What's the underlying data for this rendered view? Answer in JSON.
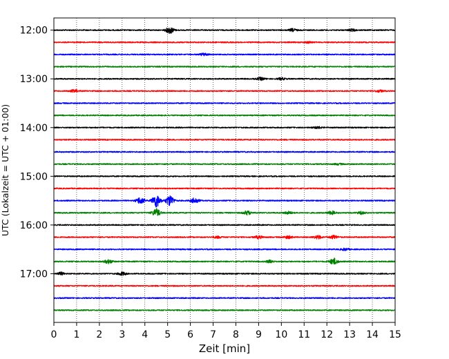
{
  "chart_data": {
    "type": "line",
    "title": "",
    "xlabel": "Zeit  [min]",
    "ylabel": "UTC (Lokalzeit = UTC + 01:00)",
    "x_range": [
      0,
      15
    ],
    "x_ticks": [
      0,
      1,
      2,
      3,
      4,
      5,
      6,
      7,
      8,
      9,
      10,
      11,
      12,
      13,
      14,
      15
    ],
    "y_tick_labels": [
      "12:00",
      "13:00",
      "14:00",
      "15:00",
      "16:00",
      "17:00"
    ],
    "y_range": [
      "11:45",
      "18:00"
    ],
    "grid": "vertical dotted lines at each minute",
    "trace_interval_minutes": 15,
    "trace_color_cycle": [
      "#000000",
      "#ff0000",
      "#0000ff",
      "#008000"
    ],
    "traces": [
      {
        "start": "12:00",
        "color": "#000000",
        "events": [
          {
            "t": 5.1,
            "amp": 5
          },
          {
            "t": 10.5,
            "amp": 2
          },
          {
            "t": 13.1,
            "amp": 1.5
          }
        ]
      },
      {
        "start": "12:15",
        "color": "#ff0000",
        "events": [
          {
            "t": 11.2,
            "amp": 1
          }
        ]
      },
      {
        "start": "12:30",
        "color": "#0000ff",
        "events": [
          {
            "t": 6.6,
            "amp": 2
          }
        ]
      },
      {
        "start": "12:45",
        "color": "#008000",
        "events": []
      },
      {
        "start": "13:00",
        "color": "#000000",
        "events": [
          {
            "t": 9.1,
            "amp": 2
          },
          {
            "t": 10.0,
            "amp": 1.5
          }
        ]
      },
      {
        "start": "13:15",
        "color": "#ff0000",
        "events": [
          {
            "t": 0.9,
            "amp": 2
          },
          {
            "t": 14.3,
            "amp": 1.5
          }
        ]
      },
      {
        "start": "13:30",
        "color": "#0000ff",
        "events": []
      },
      {
        "start": "13:45",
        "color": "#008000",
        "events": []
      },
      {
        "start": "14:00",
        "color": "#000000",
        "events": [
          {
            "t": 11.6,
            "amp": 1.5
          }
        ]
      },
      {
        "start": "14:15",
        "color": "#ff0000",
        "events": []
      },
      {
        "start": "14:30",
        "color": "#0000ff",
        "events": []
      },
      {
        "start": "14:45",
        "color": "#008000",
        "events": [
          {
            "t": 12.5,
            "amp": 1
          }
        ]
      },
      {
        "start": "15:00",
        "color": "#000000",
        "events": []
      },
      {
        "start": "15:15",
        "color": "#ff0000",
        "events": []
      },
      {
        "start": "15:30",
        "color": "#0000ff",
        "events": [
          {
            "t": 4.5,
            "amp": 10
          },
          {
            "t": 5.1,
            "amp": 8
          },
          {
            "t": 3.8,
            "amp": 5
          },
          {
            "t": 6.2,
            "amp": 4
          }
        ]
      },
      {
        "start": "15:45",
        "color": "#008000",
        "events": [
          {
            "t": 4.5,
            "amp": 6
          },
          {
            "t": 8.5,
            "amp": 3
          },
          {
            "t": 12.2,
            "amp": 2.5
          },
          {
            "t": 10.3,
            "amp": 2
          },
          {
            "t": 13.5,
            "amp": 2
          }
        ]
      },
      {
        "start": "16:00",
        "color": "#000000",
        "events": []
      },
      {
        "start": "16:15",
        "color": "#ff0000",
        "events": [
          {
            "t": 9.0,
            "amp": 2
          },
          {
            "t": 10.3,
            "amp": 2
          },
          {
            "t": 11.6,
            "amp": 2.5
          },
          {
            "t": 12.3,
            "amp": 2.5
          },
          {
            "t": 7.2,
            "amp": 1.5
          }
        ]
      },
      {
        "start": "16:30",
        "color": "#0000ff",
        "events": [
          {
            "t": 12.8,
            "amp": 1.5
          }
        ]
      },
      {
        "start": "16:45",
        "color": "#008000",
        "events": [
          {
            "t": 12.3,
            "amp": 5
          },
          {
            "t": 2.4,
            "amp": 3
          },
          {
            "t": 9.5,
            "amp": 2
          }
        ]
      },
      {
        "start": "17:00",
        "color": "#000000",
        "events": [
          {
            "t": 0.3,
            "amp": 2
          },
          {
            "t": 3.0,
            "amp": 2.5
          }
        ]
      },
      {
        "start": "17:15",
        "color": "#ff0000",
        "events": []
      },
      {
        "start": "17:30",
        "color": "#0000ff",
        "events": []
      },
      {
        "start": "17:45",
        "color": "#008000",
        "events": []
      }
    ]
  }
}
